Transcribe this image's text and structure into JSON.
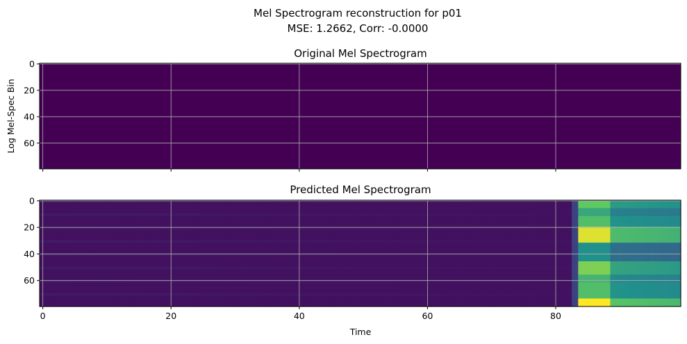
{
  "figure": {
    "suptitle_line1": "Mel Spectrogram reconstruction for p01",
    "suptitle_line2": "MSE: 1.2662, Corr: -0.0000"
  },
  "chart_data": [
    {
      "type": "heatmap",
      "title": "Original Mel Spectrogram",
      "xlabel": "",
      "ylabel": "Log Mel-Spec Bin",
      "xlim": [
        -0.5,
        99.5
      ],
      "ylim": [
        79.5,
        -0.5
      ],
      "xticks": [
        0,
        20,
        40,
        60,
        80
      ],
      "yticks": [
        0,
        20,
        40,
        60
      ],
      "show_xticklabels": false,
      "grid": true,
      "colormap": "viridis",
      "description_values": "uniform minimum value across all time frames and bins",
      "time_frames": 100,
      "mel_bins": 80,
      "value": 0.0
    },
    {
      "type": "heatmap",
      "title": "Predicted Mel Spectrogram",
      "xlabel": "Time",
      "ylabel": "",
      "xlim": [
        -0.5,
        99.5
      ],
      "ylim": [
        79.5,
        -0.5
      ],
      "xticks": [
        0,
        20,
        40,
        60,
        80
      ],
      "yticks": [
        0,
        20,
        40,
        60
      ],
      "show_xticklabels": true,
      "grid": true,
      "colormap": "viridis",
      "time_frames": 100,
      "mel_bins": 80,
      "onset_frame": 84,
      "low_level": 0.05,
      "high_bands": [
        {
          "bins": [
            0,
            5
          ],
          "level": 0.75
        },
        {
          "bins": [
            5,
            12
          ],
          "level": 0.6
        },
        {
          "bins": [
            12,
            20
          ],
          "level": 0.7
        },
        {
          "bins": [
            20,
            32
          ],
          "level": 0.95
        },
        {
          "bins": [
            32,
            45
          ],
          "level": 0.5
        },
        {
          "bins": [
            45,
            56
          ],
          "level": 0.8
        },
        {
          "bins": [
            56,
            62
          ],
          "level": 0.65
        },
        {
          "bins": [
            62,
            74
          ],
          "level": 0.7
        },
        {
          "bins": [
            74,
            80
          ],
          "level": 1.0
        }
      ]
    }
  ]
}
